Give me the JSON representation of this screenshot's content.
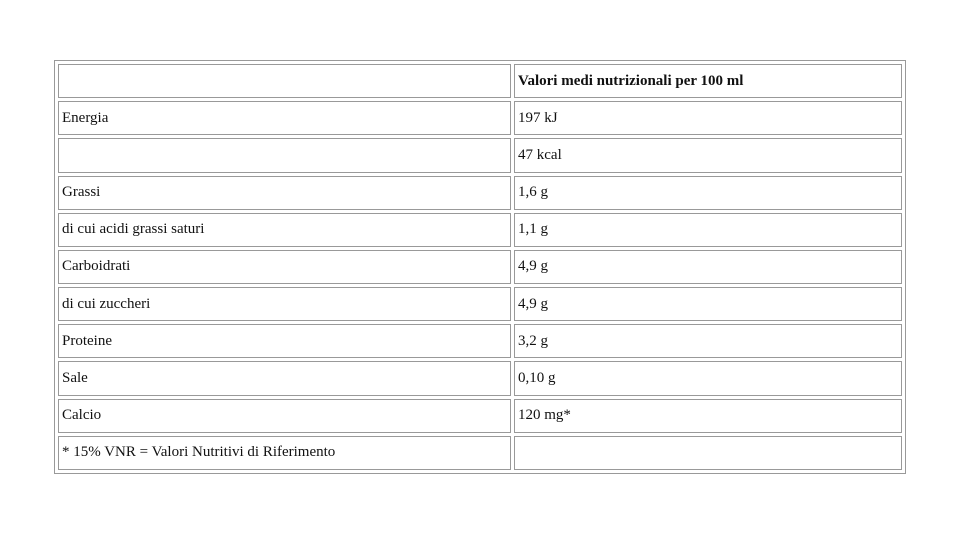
{
  "table": {
    "header": "Valori medi nutrizionali per 100 ml",
    "rows": [
      {
        "label": "Energia",
        "value": "197 kJ"
      },
      {
        "value": "47 kcal"
      },
      {
        "label": "Grassi",
        "value": "1,6 g"
      },
      {
        "label": "di cui acidi grassi saturi",
        "value": "1,1 g"
      },
      {
        "label": "Carboidrati",
        "value": "4,9 g"
      },
      {
        "label": "di cui zuccheri",
        "value": "4,9 g"
      },
      {
        "label": "Proteine",
        "value": "3,2 g"
      },
      {
        "label": "Sale",
        "value": "0,10 g"
      },
      {
        "label": "Calcio",
        "value": "120 mg*"
      },
      {
        "label": "* 15% VNR = Valori Nutritivi di Riferimento"
      }
    ]
  }
}
